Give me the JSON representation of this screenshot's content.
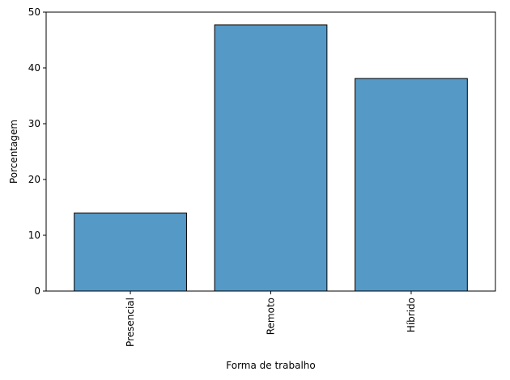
{
  "chart_data": {
    "type": "bar",
    "categories": [
      "Presencial",
      "Remoto",
      "Híbrido"
    ],
    "values": [
      14.0,
      47.7,
      38.1
    ],
    "xlabel": "Forma de trabalho",
    "ylabel": "Porcentagem",
    "ylim": [
      0,
      50
    ],
    "yticks": [
      0,
      10,
      20,
      30,
      40,
      50
    ],
    "bar_color": "#5599c7",
    "bar_edge_color": "#000000",
    "grid": false,
    "x_tick_rotation": "vertical"
  }
}
